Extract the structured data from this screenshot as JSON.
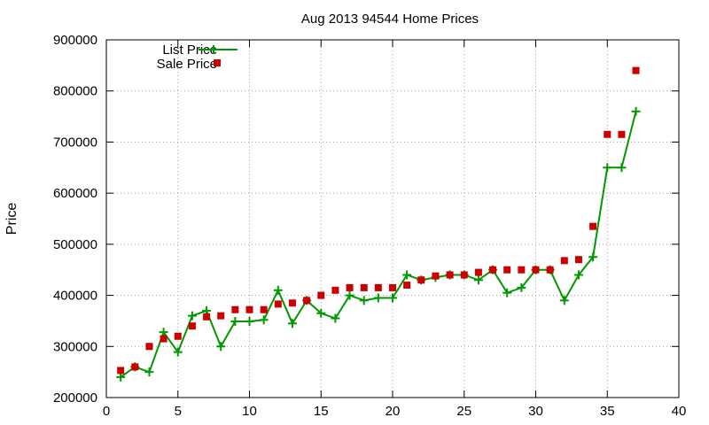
{
  "chart_data": {
    "type": "line",
    "title": "Aug 2013 94544 Home Prices",
    "xlabel": "",
    "ylabel": "Price",
    "xlim": [
      0,
      40
    ],
    "ylim": [
      200000,
      900000
    ],
    "x_ticks": [
      0,
      5,
      10,
      15,
      20,
      25,
      30,
      35,
      40
    ],
    "y_ticks": [
      200000,
      300000,
      400000,
      500000,
      600000,
      700000,
      800000,
      900000
    ],
    "x_tick_labels": [
      "0",
      "5",
      "10",
      "15",
      "20",
      "25",
      "30",
      "35",
      "40"
    ],
    "y_tick_labels": [
      "200000",
      "300000",
      "400000",
      "500000",
      "600000",
      "700000",
      "800000",
      "900000"
    ],
    "grid": true,
    "legend_position": "top-left",
    "series": [
      {
        "name": "List Price",
        "style": "line-with-plus-markers",
        "color": "#009900",
        "x": [
          1,
          2,
          3,
          4,
          5,
          6,
          7,
          8,
          9,
          10,
          11,
          12,
          13,
          14,
          15,
          16,
          17,
          18,
          19,
          20,
          21,
          22,
          23,
          24,
          25,
          26,
          27,
          28,
          29,
          30,
          31,
          32,
          33,
          34,
          35,
          36,
          37
        ],
        "values": [
          240000,
          260000,
          250000,
          328000,
          289000,
          360000,
          370000,
          300000,
          349000,
          349000,
          352000,
          410000,
          345000,
          390000,
          365000,
          355000,
          400000,
          390000,
          395000,
          395000,
          440000,
          430000,
          435000,
          440000,
          440000,
          430000,
          450000,
          405000,
          415000,
          450000,
          450000,
          390000,
          440000,
          475000,
          650000,
          650000,
          760000
        ]
      },
      {
        "name": "Sale Price",
        "style": "square-markers",
        "color": "#cc0000",
        "x": [
          1,
          2,
          3,
          4,
          5,
          6,
          7,
          8,
          9,
          10,
          11,
          12,
          13,
          14,
          15,
          16,
          17,
          18,
          19,
          20,
          21,
          22,
          23,
          24,
          25,
          26,
          27,
          28,
          29,
          30,
          31,
          32,
          33,
          34,
          35,
          36,
          37
        ],
        "values": [
          253000,
          260000,
          300000,
          315000,
          320000,
          340000,
          358000,
          360000,
          372000,
          372000,
          372000,
          383000,
          385000,
          390000,
          400000,
          410000,
          415000,
          415000,
          415000,
          415000,
          420000,
          430000,
          438000,
          440000,
          440000,
          445000,
          450000,
          450000,
          450000,
          450000,
          450000,
          468000,
          470000,
          535000,
          715000,
          715000,
          840000
        ]
      }
    ]
  }
}
